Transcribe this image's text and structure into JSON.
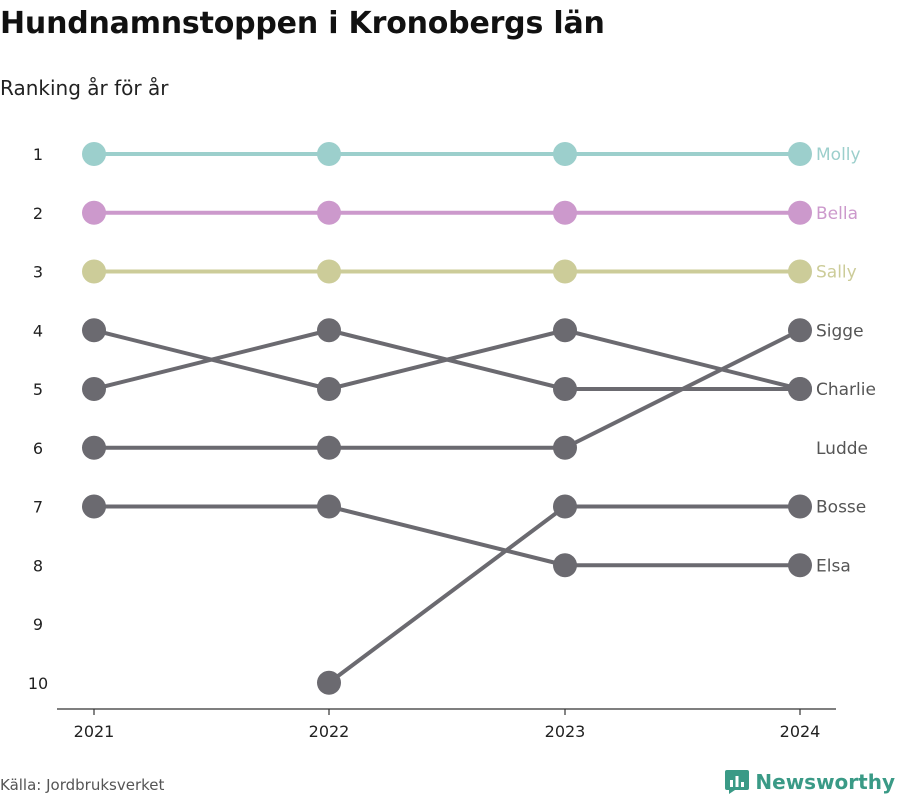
{
  "header": {
    "title": "Hundnamnstoppen i Kronobergs län",
    "subtitle": "Ranking år för år"
  },
  "footer": {
    "source": "Källa: Jordbruksverket",
    "brand": "Newsworthy"
  },
  "chart_data": {
    "type": "line",
    "chart_kind": "bump",
    "x": [
      "2021",
      "2022",
      "2023",
      "2024"
    ],
    "y_ticks": [
      "1",
      "2",
      "3",
      "4",
      "5",
      "6",
      "7",
      "8",
      "9",
      "10"
    ],
    "ylim": [
      1,
      10
    ],
    "y_inverted": true,
    "grid": false,
    "legend": "end-labels",
    "series": [
      {
        "name": "Molly",
        "values": [
          1,
          1,
          1,
          1
        ],
        "color": "#9ccfcc"
      },
      {
        "name": "Bella",
        "values": [
          2,
          2,
          2,
          2
        ],
        "color": "#cc99cc"
      },
      {
        "name": "Sally",
        "values": [
          3,
          3,
          3,
          3
        ],
        "color": "#cccc99"
      },
      {
        "name": "Sigge",
        "values": [
          6,
          6,
          6,
          4
        ],
        "color": "#6b6a70"
      },
      {
        "name": "Charlie",
        "values": [
          4,
          5,
          4,
          5
        ],
        "color": "#6b6a70"
      },
      {
        "name": "Ludde",
        "values": [
          5,
          4,
          5,
          5
        ],
        "color": "#6b6a70",
        "hide_label_dot": true
      },
      {
        "name": "Bosse",
        "values": [
          null,
          10,
          7,
          7
        ],
        "color": "#6b6a70"
      },
      {
        "name": "Elsa",
        "values": [
          7,
          7,
          8,
          8
        ],
        "color": "#6b6a70"
      }
    ],
    "label_colors": {
      "Molly": "#9ccfcc",
      "Bella": "#cc99cc",
      "Sally": "#cccc99",
      "Sigge": "#555555",
      "Charlie": "#555555",
      "Ludde": "#555555",
      "Bosse": "#555555",
      "Elsa": "#555555"
    },
    "end_label_ranks": {
      "Molly": 1,
      "Bella": 2,
      "Sally": 3,
      "Sigge": 4,
      "Charlie": 5,
      "Ludde": 6,
      "Bosse": 7,
      "Elsa": 8
    }
  }
}
